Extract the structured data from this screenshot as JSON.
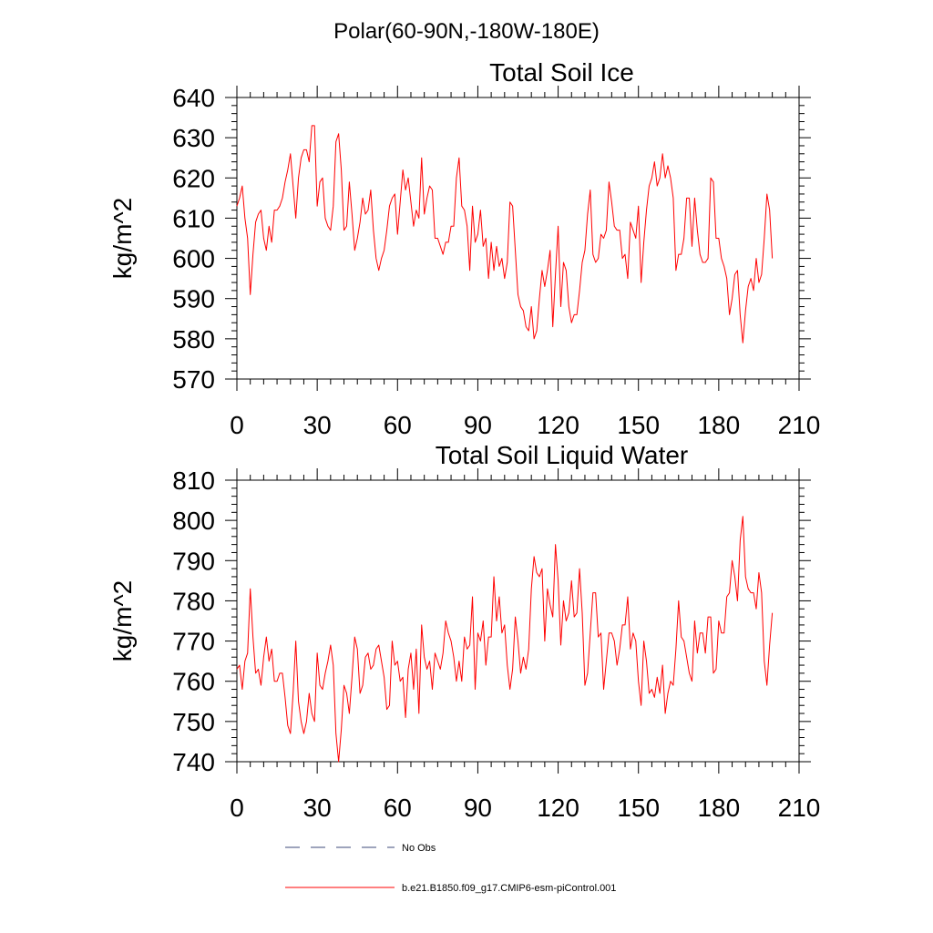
{
  "figure_title": "Polar(60-90N,-180W-180E)",
  "legend": {
    "entries": [
      {
        "label": "No Obs",
        "style": "dashed",
        "color": "#3d4a7a"
      },
      {
        "label": "b.e21.B1850.f09_g17.CMIP6-esm-piControl.001",
        "style": "solid",
        "color": "#ff0000"
      }
    ]
  },
  "chart_data": [
    {
      "type": "line",
      "title": "Total Soil Ice",
      "xlabel": "",
      "ylabel": "kg/m^2",
      "xlim": [
        0,
        210
      ],
      "ylim": [
        570,
        640
      ],
      "xticks": [
        0,
        30,
        60,
        90,
        120,
        150,
        180,
        210
      ],
      "yticks": [
        570,
        580,
        590,
        600,
        610,
        620,
        630,
        640
      ],
      "series": [
        {
          "name": "b.e21.B1850.f09_g17.CMIP6-esm-piControl.001",
          "color": "#ff0000",
          "values": [
            613,
            615,
            618,
            610,
            605,
            591,
            601,
            609,
            611,
            612,
            605,
            602,
            608,
            604,
            612,
            612,
            613,
            615,
            619,
            622,
            626,
            618,
            610,
            620,
            625,
            627,
            627,
            624,
            633,
            633,
            613,
            619,
            620,
            610,
            608,
            607,
            613,
            629,
            631,
            622,
            607,
            608,
            619,
            611,
            602,
            605,
            609,
            615,
            611,
            612,
            617,
            607,
            600,
            597,
            600,
            602,
            607,
            613,
            615,
            616,
            606,
            614,
            622,
            617,
            620,
            614,
            608,
            612,
            610,
            625,
            611,
            615,
            618,
            617,
            605,
            605,
            603,
            601,
            604,
            604,
            608,
            608,
            620,
            625,
            613,
            612,
            608,
            597,
            613,
            604,
            606,
            612,
            603,
            605,
            595,
            604,
            597,
            603,
            598,
            600,
            595,
            599,
            614,
            613,
            602,
            591,
            588,
            587,
            583,
            582,
            588,
            580,
            582,
            590,
            597,
            593,
            597,
            602,
            583,
            596,
            608,
            588,
            599,
            597,
            588,
            584,
            586,
            586,
            592,
            599,
            602,
            611,
            617,
            601,
            599,
            600,
            606,
            605,
            607,
            619,
            614,
            608,
            607,
            607,
            600,
            601,
            595,
            609,
            607,
            605,
            613,
            594,
            604,
            612,
            618,
            620,
            624,
            618,
            620,
            626,
            620,
            623,
            620,
            615,
            597,
            601,
            601,
            605,
            615,
            615,
            603,
            615,
            607,
            601,
            599,
            599,
            600,
            620,
            619,
            605,
            605,
            600,
            598,
            595,
            586,
            590,
            596,
            597,
            586,
            579,
            587,
            593,
            595,
            592,
            600,
            594,
            596,
            605,
            616,
            612,
            600
          ]
        }
      ]
    },
    {
      "type": "line",
      "title": "Total Soil Liquid Water",
      "xlabel": "",
      "ylabel": "kg/m^2",
      "xlim": [
        0,
        210
      ],
      "ylim": [
        740,
        810
      ],
      "xticks": [
        0,
        30,
        60,
        90,
        120,
        150,
        180,
        210
      ],
      "yticks": [
        740,
        750,
        760,
        770,
        780,
        790,
        800,
        810
      ],
      "series": [
        {
          "name": "b.e21.B1850.f09_g17.CMIP6-esm-piControl.001",
          "color": "#ff0000",
          "values": [
            763,
            764,
            758,
            765,
            767,
            783,
            771,
            762,
            763,
            759,
            766,
            771,
            765,
            768,
            760,
            760,
            762,
            762,
            756,
            749,
            747,
            757,
            770,
            755,
            750,
            747,
            750,
            757,
            752,
            750,
            767,
            759,
            758,
            762,
            765,
            769,
            764,
            747,
            740,
            748,
            759,
            757,
            752,
            761,
            771,
            768,
            757,
            759,
            766,
            767,
            763,
            764,
            768,
            769,
            765,
            761,
            753,
            754,
            770,
            764,
            765,
            760,
            761,
            751,
            763,
            767,
            758,
            768,
            752,
            774,
            766,
            763,
            765,
            758,
            767,
            765,
            763,
            767,
            775,
            772,
            770,
            766,
            760,
            765,
            760,
            771,
            768,
            769,
            781,
            758,
            772,
            770,
            775,
            764,
            771,
            771,
            786,
            775,
            781,
            772,
            774,
            764,
            758,
            763,
            776,
            770,
            762,
            766,
            763,
            768,
            783,
            791,
            787,
            786,
            788,
            770,
            783,
            779,
            776,
            794,
            785,
            769,
            780,
            775,
            777,
            785,
            776,
            777,
            788,
            777,
            759,
            762,
            772,
            782,
            782,
            771,
            772,
            758,
            765,
            772,
            772,
            770,
            764,
            768,
            774,
            774,
            781,
            768,
            772,
            770,
            760,
            754,
            770,
            765,
            757,
            758,
            756,
            761,
            757,
            764,
            752,
            757,
            760,
            759,
            768,
            780,
            771,
            770,
            766,
            762,
            760,
            775,
            767,
            772,
            772,
            767,
            776,
            776,
            762,
            763,
            775,
            772,
            772,
            781,
            782,
            790,
            786,
            780,
            795,
            801,
            786,
            783,
            782,
            782,
            778,
            787,
            782,
            765,
            759,
            769,
            777
          ]
        }
      ]
    }
  ]
}
